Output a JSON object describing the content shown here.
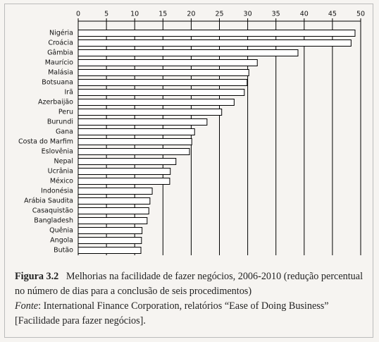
{
  "chart_data": {
    "type": "bar",
    "orientation": "horizontal",
    "figure_label": "Figura 3.2",
    "title": "Melhorias na facilidade de fazer negócios, 2006-2010 (redução percentual no número de dias para a conclusão de seis procedimentos)",
    "source_label": "Fonte",
    "source": ": International Finance Corporation, relatórios “Ease of Doing Business” [Facilidade para fazer negócios].",
    "categories": [
      "Nigéria",
      "Croácia",
      "Gâmbia",
      "Maurício",
      "Malásia",
      "Botsuana",
      "Irã",
      "Azerbaijão",
      "Peru",
      "Burundi",
      "Gana",
      "Costa do Marfim",
      "Eslovênia",
      "Nepal",
      "Ucrânia",
      "México",
      "Indonésia",
      "Arábia Saudita",
      "Casaquistão",
      "Bangladesh",
      "Quênia",
      "Angola",
      "Butão"
    ],
    "values": [
      49.0,
      48.3,
      38.9,
      31.7,
      30.2,
      29.9,
      29.4,
      27.6,
      25.4,
      22.8,
      20.6,
      20.1,
      19.7,
      17.3,
      16.3,
      16.2,
      13.1,
      12.7,
      12.5,
      12.2,
      11.3,
      11.2,
      11.1
    ],
    "color": "#ffffff",
    "xlim": [
      0,
      50
    ],
    "xticks": [
      0,
      5,
      10,
      15,
      20,
      25,
      30,
      35,
      40,
      45,
      50
    ],
    "grid": true
  }
}
